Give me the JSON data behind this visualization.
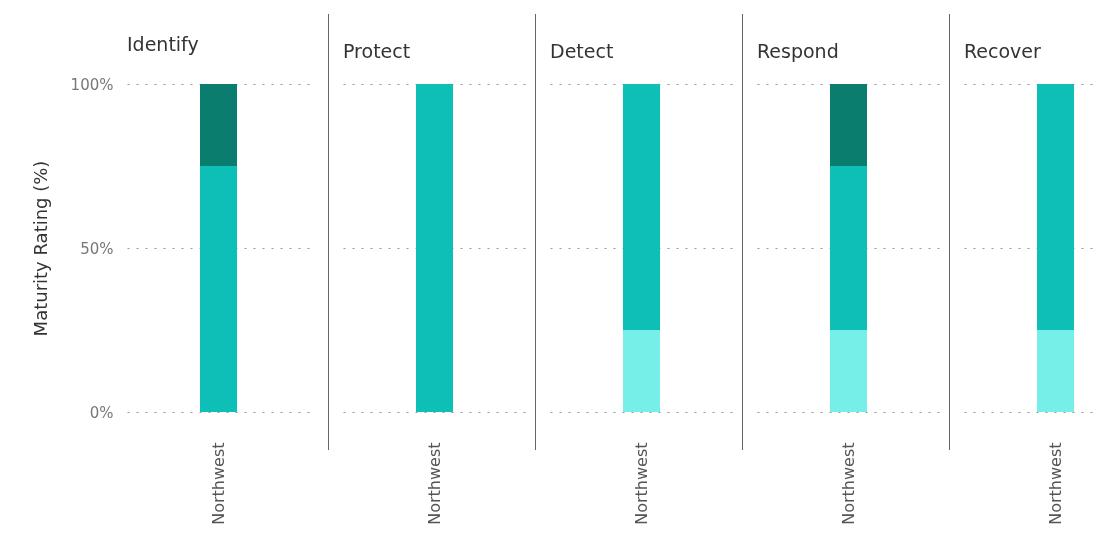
{
  "chart_data": [
    {
      "type": "bar",
      "stacked": true,
      "title": "Identify",
      "ylabel": "Maturity Rating (%)",
      "categories": [
        "Northwest"
      ],
      "ylim": [
        0,
        100
      ],
      "yticks": [
        {
          "value": 0,
          "label": "0%"
        },
        {
          "value": 50,
          "label": "50%"
        },
        {
          "value": 100,
          "label": "100%"
        }
      ],
      "grid": "y",
      "series": [
        {
          "color": "#0ebfb8",
          "values": [
            75
          ]
        },
        {
          "color": "#0a7d6e",
          "values": [
            25
          ]
        }
      ]
    },
    {
      "type": "bar",
      "stacked": true,
      "title": "Protect",
      "categories": [
        "Northwest"
      ],
      "ylim": [
        0,
        100
      ],
      "yticks": [
        {
          "value": 0,
          "label": null
        },
        {
          "value": 50,
          "label": null
        },
        {
          "value": 100,
          "label": null
        }
      ],
      "grid": "y",
      "tick_labels": "x",
      "series": [
        {
          "color": "#0ebfb8",
          "values": [
            100
          ]
        }
      ]
    },
    {
      "type": "bar",
      "stacked": true,
      "title": "Detect",
      "categories": [
        "Northwest"
      ],
      "ylim": [
        0,
        100
      ],
      "yticks": [
        {
          "value": 0,
          "label": null
        },
        {
          "value": 50,
          "label": null
        },
        {
          "value": 100,
          "label": null
        }
      ],
      "grid": "y",
      "tick_labels": "x",
      "series": [
        {
          "color": "#76efe9",
          "values": [
            25
          ]
        },
        {
          "color": "#0ebfb8",
          "values": [
            75
          ]
        }
      ]
    },
    {
      "type": "bar",
      "stacked": true,
      "title": "Respond",
      "categories": [
        "Northwest"
      ],
      "ylim": [
        0,
        100
      ],
      "yticks": [
        {
          "value": 0,
          "label": null
        },
        {
          "value": 50,
          "label": null
        },
        {
          "value": 100,
          "label": null
        }
      ],
      "grid": "y",
      "tick_labels": "x",
      "series": [
        {
          "color": "#76efe9",
          "values": [
            25
          ]
        },
        {
          "color": "#0ebfb8",
          "values": [
            50
          ]
        },
        {
          "color": "#0a7d6e",
          "values": [
            25
          ]
        }
      ]
    },
    {
      "type": "bar",
      "stacked": true,
      "title": "Recover",
      "categories": [
        "Northwest"
      ],
      "ylim": [
        0,
        100
      ],
      "yticks": [
        {
          "value": 0,
          "label": null
        },
        {
          "value": 50,
          "label": null
        },
        {
          "value": 100,
          "label": null
        }
      ],
      "grid": "y",
      "tick_labels": "x",
      "series": [
        {
          "color": "#76efe9",
          "values": [
            25
          ]
        },
        {
          "color": "#0ebfb8",
          "values": [
            75
          ]
        }
      ]
    }
  ]
}
